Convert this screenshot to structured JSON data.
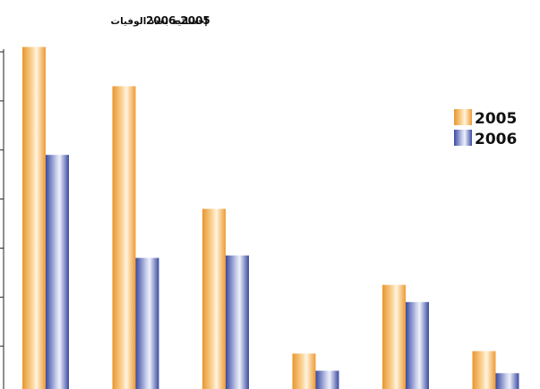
{
  "chart_data": {
    "type": "bar",
    "title_arabic": "إحصائية بعدد الوفيات",
    "title_years": "2006-2005",
    "categories": [
      "",
      "",
      "",
      "",
      "",
      ""
    ],
    "series": [
      {
        "name": "2005",
        "color": "orange",
        "values": [
          7.1,
          6.3,
          3.8,
          0.85,
          2.25,
          0.9
        ]
      },
      {
        "name": "2006",
        "color": "blue",
        "values": [
          4.9,
          2.8,
          2.85,
          0.5,
          1.9,
          0.45
        ]
      }
    ],
    "ylim": [
      0,
      7
    ],
    "yticks": [
      0,
      1,
      2,
      3,
      4,
      5,
      6,
      7
    ],
    "legend_position": "top-right",
    "colors": {
      "orange": "#F2A33A",
      "blue": "#3F4FA5"
    }
  }
}
